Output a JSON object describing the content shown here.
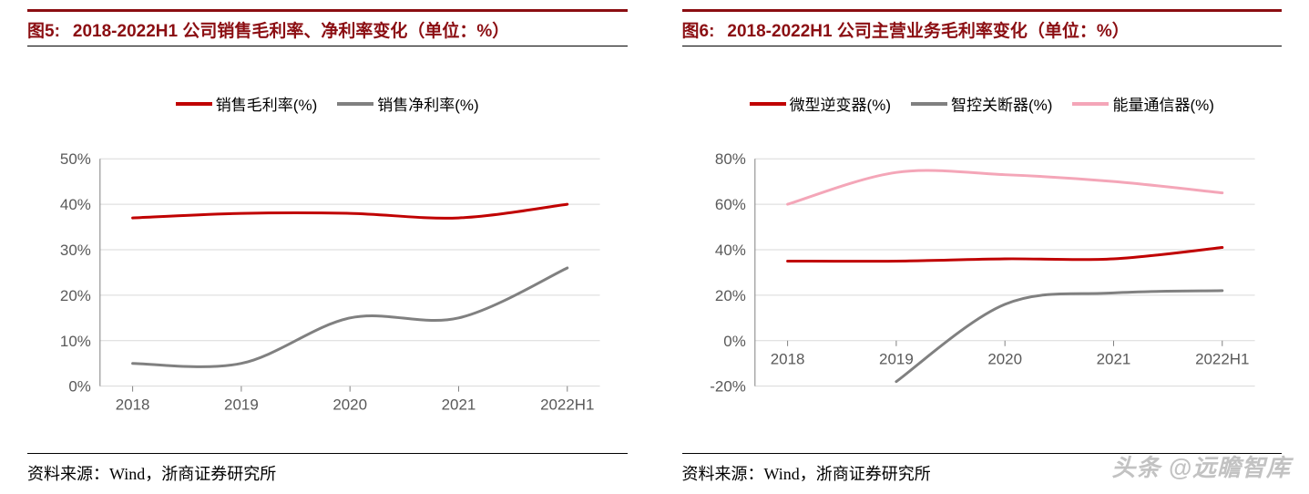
{
  "chart5": {
    "fig_label": "图5:",
    "title": "2018-2022H1 公司销售毛利率、净利率变化（单位：%）",
    "type": "line",
    "categories": [
      "2018",
      "2019",
      "2020",
      "2021",
      "2022H1"
    ],
    "ylim": [
      0,
      50
    ],
    "ytick_step": 10,
    "yticks": [
      "0%",
      "10%",
      "20%",
      "30%",
      "40%",
      "50%"
    ],
    "grid_color": "#d9d9d9",
    "axis_color": "#808080",
    "tick_fontsize": 17,
    "line_width": 3,
    "series": [
      {
        "name": "销售毛利率(%)",
        "color": "#c00000",
        "values": [
          37,
          38,
          38,
          37,
          40
        ]
      },
      {
        "name": "销售净利率(%)",
        "color": "#808080",
        "values": [
          5,
          5,
          15,
          15,
          26
        ]
      }
    ],
    "title_color": "#8b0e12",
    "title_fontsize": 19,
    "background_color": "#ffffff"
  },
  "chart6": {
    "fig_label": "图6:",
    "title": "2018-2022H1 公司主营业务毛利率变化（单位：%）",
    "type": "line",
    "categories": [
      "2018",
      "2019",
      "2020",
      "2021",
      "2022H1"
    ],
    "ylim": [
      -20,
      80
    ],
    "ytick_step": 20,
    "yticks": [
      "-20%",
      "0%",
      "20%",
      "40%",
      "60%",
      "80%"
    ],
    "grid_color": "#d9d9d9",
    "axis_color": "#808080",
    "tick_fontsize": 17,
    "line_width": 3,
    "series": [
      {
        "name": "微型逆变器(%)",
        "color": "#c00000",
        "values": [
          35,
          35,
          36,
          36,
          41
        ]
      },
      {
        "name": "智控关断器(%)",
        "color": "#808080",
        "values": [
          null,
          -18,
          16,
          21,
          22
        ]
      },
      {
        "name": "能量通信器(%)",
        "color": "#f4a6b8",
        "values": [
          60,
          74,
          73,
          70,
          65
        ]
      }
    ],
    "title_color": "#8b0e12",
    "title_fontsize": 19,
    "background_color": "#ffffff"
  },
  "source_text": "资料来源：Wind，浙商证券研究所",
  "watermark": "头条 @远瞻智库"
}
